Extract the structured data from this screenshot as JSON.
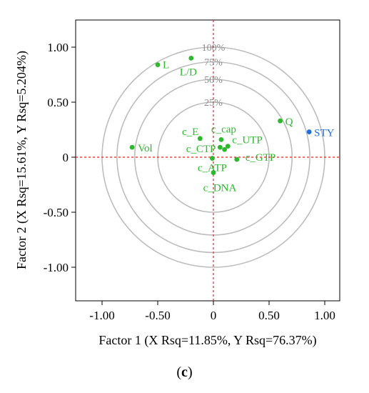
{
  "chart_data": {
    "type": "scatter",
    "xlabel": "Factor 1 (X Rsq=11.85%, Y Rsq=76.37%)",
    "ylabel": "Factor 2 (X Rsq=15.61%, Y Rsq=5.204%)",
    "xlim": [
      -1.25,
      1.25
    ],
    "ylim": [
      -1.3,
      1.22
    ],
    "xticks": [
      -1.0,
      -0.5,
      0,
      0.5,
      1.0
    ],
    "xtick_labels": [
      "-1.00",
      "-0.50",
      "0",
      "0.50",
      "1.00"
    ],
    "yticks": [
      -1.0,
      -0.5,
      0,
      0.5,
      1.0
    ],
    "ytick_labels": [
      "-1.00",
      "-0.50",
      "0",
      "0.50",
      "1.00"
    ],
    "grid": false,
    "reference_lines": {
      "x": 0,
      "y": 0,
      "color": "#d62728",
      "style": "dashed"
    },
    "circles": [
      {
        "radius": 0.5,
        "label": "25%"
      },
      {
        "radius": 0.707,
        "label": "50%"
      },
      {
        "radius": 0.866,
        "label": "75%"
      },
      {
        "radius": 1.0,
        "label": "100%"
      }
    ],
    "colors": {
      "x_variables": "#2db82d",
      "y_variables": "#1f6fe0",
      "circles": "#bdbdbd",
      "ring_labels": "#8c8c8c"
    },
    "points": [
      {
        "label": "L",
        "x": -0.5,
        "y": 0.84,
        "color": "#2db82d"
      },
      {
        "label": "L/D",
        "x": -0.2,
        "y": 0.9,
        "color": "#2db82d"
      },
      {
        "label": "Vol",
        "x": -0.73,
        "y": 0.09,
        "color": "#2db82d"
      },
      {
        "label": "c_E",
        "x": -0.12,
        "y": 0.17,
        "color": "#2db82d"
      },
      {
        "label": "c_cap",
        "x": 0.07,
        "y": 0.16,
        "color": "#2db82d"
      },
      {
        "label": "c_CTP",
        "x": 0.06,
        "y": 0.09,
        "color": "#2db82d"
      },
      {
        "label": "c_UTP",
        "x": 0.13,
        "y": 0.1,
        "color": "#2db82d"
      },
      {
        "label": "",
        "x": 0.1,
        "y": 0.07,
        "color": "#2db82d"
      },
      {
        "label": "c_GTP",
        "x": 0.21,
        "y": -0.02,
        "color": "#2db82d"
      },
      {
        "label": "c_ATP",
        "x": -0.01,
        "y": -0.01,
        "color": "#2db82d"
      },
      {
        "label": "c_DNA",
        "x": 0.0,
        "y": -0.14,
        "color": "#2db82d"
      },
      {
        "label": "Q",
        "x": 0.6,
        "y": 0.33,
        "color": "#2db82d"
      },
      {
        "label": "STY",
        "x": 0.86,
        "y": 0.23,
        "color": "#1f6fe0"
      }
    ]
  },
  "caption": {
    "open": "(",
    "letter": "c",
    "close": ")"
  }
}
